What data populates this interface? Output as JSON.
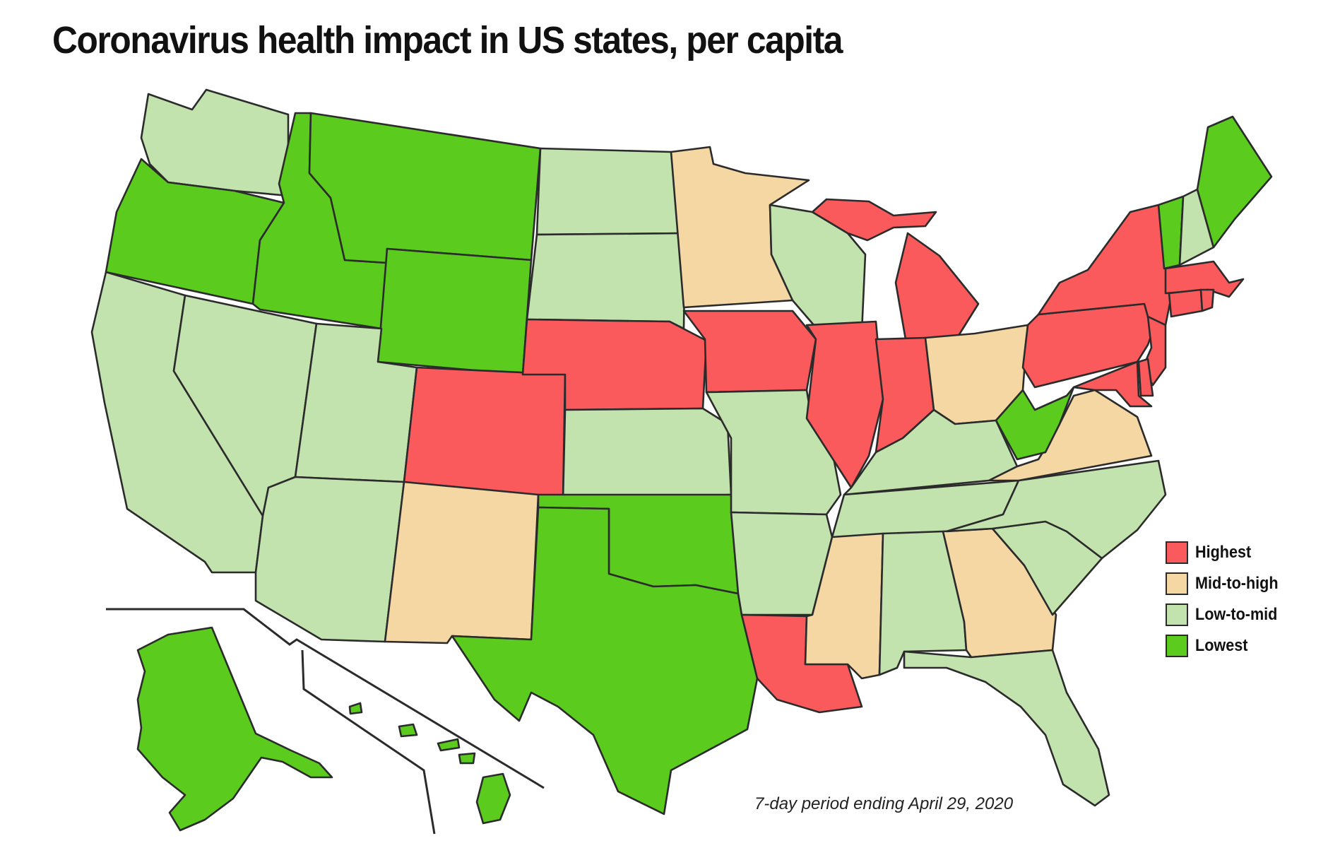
{
  "title": "Coronavirus health impact in US states, per capita",
  "note": "7-day period ending April 29, 2020",
  "colors": {
    "highest": "#fa5a5c",
    "mid_to_high": "#f5d7a4",
    "low_to_mid": "#c2e2ae",
    "lowest": "#5bcb1e"
  },
  "legend": [
    {
      "label": "Highest",
      "category": "highest"
    },
    {
      "label": "Mid-to-high",
      "category": "mid_to_high"
    },
    {
      "label": "Low-to-mid",
      "category": "low_to_mid"
    },
    {
      "label": "Lowest",
      "category": "lowest"
    }
  ],
  "states": {
    "WA": "low_to_mid",
    "OR": "lowest",
    "CA": "low_to_mid",
    "NV": "low_to_mid",
    "ID": "lowest",
    "MT": "lowest",
    "WY": "lowest",
    "UT": "low_to_mid",
    "AZ": "low_to_mid",
    "CO": "highest",
    "NM": "mid_to_high",
    "ND": "low_to_mid",
    "SD": "low_to_mid",
    "NE": "highest",
    "KS": "low_to_mid",
    "OK": "lowest",
    "TX": "lowest",
    "MN": "mid_to_high",
    "IA": "highest",
    "MO": "low_to_mid",
    "AR": "low_to_mid",
    "LA": "highest",
    "WI": "low_to_mid",
    "IL": "highest",
    "MI": "highest",
    "IN": "highest",
    "OH": "mid_to_high",
    "KY": "low_to_mid",
    "TN": "low_to_mid",
    "MS": "mid_to_high",
    "AL": "low_to_mid",
    "GA": "mid_to_high",
    "FL": "low_to_mid",
    "SC": "low_to_mid",
    "NC": "low_to_mid",
    "VA": "mid_to_high",
    "WV": "lowest",
    "PA": "highest",
    "NY": "highest",
    "VT": "lowest",
    "NH": "low_to_mid",
    "ME": "lowest",
    "MA": "highest",
    "RI": "highest",
    "CT": "highest",
    "NJ": "highest",
    "DE": "highest",
    "MD": "highest",
    "AK": "lowest",
    "HI": "lowest"
  }
}
